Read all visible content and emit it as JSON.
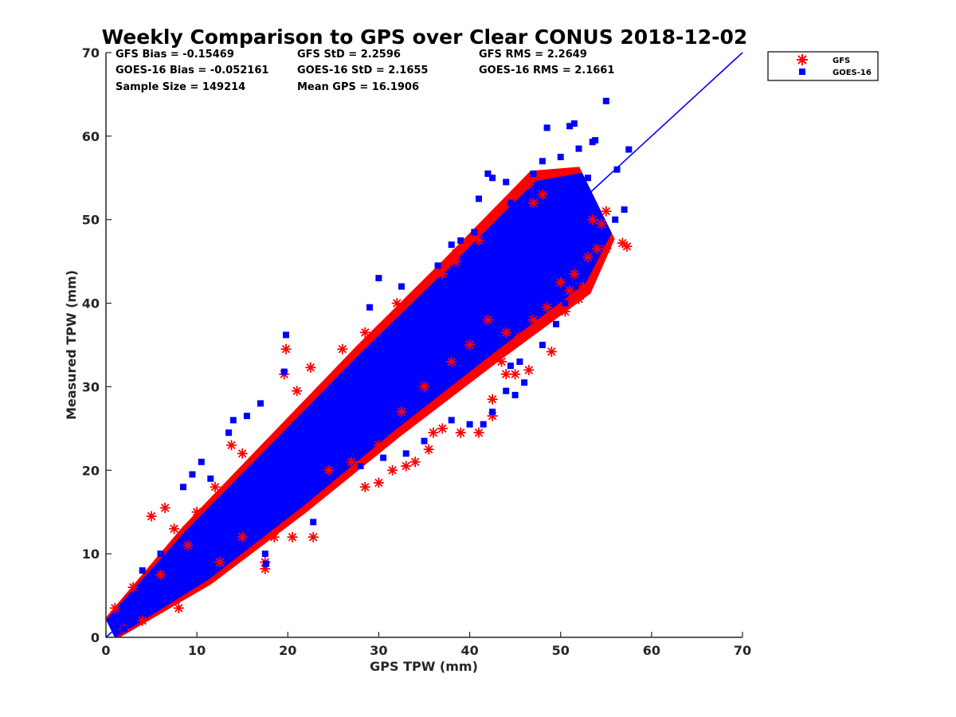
{
  "chart_data": {
    "type": "scatter",
    "title": "Weekly Comparison to GPS over Clear CONUS 2018-12-02",
    "xlabel": "GPS TPW (mm)",
    "ylabel": "Measured TPW (mm)",
    "xlim": [
      0,
      70
    ],
    "ylim": [
      0,
      70
    ],
    "xticks": [
      "0",
      "10",
      "20",
      "30",
      "40",
      "50",
      "60",
      "70"
    ],
    "yticks": [
      "0",
      "10",
      "20",
      "30",
      "40",
      "50",
      "60",
      "70"
    ],
    "grid": false,
    "legend_position": "outside-top-right",
    "stats": {
      "gfs_bias": "GFS Bias = -0.15469",
      "goes_bias": "GOES-16 Bias = -0.052161",
      "sample_size": "Sample Size = 149214",
      "gfs_std": "GFS StD = 2.2596",
      "goes_std": "GOES-16 StD = 2.1655",
      "mean_gps": "Mean GPS = 16.1906",
      "gfs_rms": "GFS RMS = 2.2649",
      "goes_rms": "GOES-16 RMS = 2.1661"
    },
    "series": [
      {
        "name": "GFS",
        "marker": "asterisk",
        "color": "#ff0000",
        "points": [
          [
            19.8,
            34.5
          ],
          [
            19.6,
            31.5
          ],
          [
            22.5,
            32.3
          ],
          [
            13.8,
            23.0
          ],
          [
            17.5,
            8.2
          ],
          [
            17.5,
            9.0
          ],
          [
            22.8,
            12.0
          ],
          [
            20.5,
            12.0
          ],
          [
            18.5,
            12.0
          ],
          [
            21.0,
            29.5
          ],
          [
            5.0,
            14.5
          ],
          [
            6.5,
            15.5
          ],
          [
            3.0,
            6.0
          ],
          [
            8.0,
            3.5
          ],
          [
            41.0,
            24.5
          ],
          [
            39.0,
            24.5
          ],
          [
            42.5,
            26.5
          ],
          [
            42.5,
            28.5
          ],
          [
            44.0,
            31.5
          ],
          [
            45.0,
            31.5
          ],
          [
            46.5,
            32.0
          ],
          [
            49.0,
            34.2
          ],
          [
            36.0,
            24.5
          ],
          [
            37.0,
            25.0
          ],
          [
            35.5,
            22.5
          ],
          [
            34.0,
            21.0
          ],
          [
            33.0,
            20.5
          ],
          [
            31.5,
            20.0
          ],
          [
            30.0,
            18.5
          ],
          [
            28.5,
            18.0
          ],
          [
            37.0,
            43.5
          ],
          [
            38.5,
            46.0
          ],
          [
            38.5,
            45.0
          ],
          [
            37.5,
            44.5
          ],
          [
            41.0,
            47.5
          ],
          [
            47.0,
            52.0
          ],
          [
            48.0,
            53.0
          ],
          [
            45.5,
            53.5
          ],
          [
            46.5,
            54.2
          ],
          [
            50.0,
            42.5
          ],
          [
            51.0,
            41.5
          ],
          [
            52.0,
            40.5
          ],
          [
            51.5,
            43.5
          ],
          [
            52.5,
            42.0
          ],
          [
            53.0,
            45.5
          ],
          [
            54.0,
            46.5
          ],
          [
            55.0,
            46.5
          ],
          [
            54.5,
            49.5
          ],
          [
            55.0,
            51.0
          ],
          [
            56.8,
            47.2
          ],
          [
            57.3,
            46.8
          ],
          [
            53.5,
            50.0
          ],
          [
            50.5,
            39.0
          ],
          [
            48.5,
            39.5
          ],
          [
            47.0,
            38.0
          ],
          [
            45.5,
            36.0
          ],
          [
            43.5,
            33.0
          ],
          [
            44.0,
            36.5
          ],
          [
            26.0,
            34.5
          ],
          [
            28.5,
            36.5
          ],
          [
            32.0,
            40.0
          ],
          [
            15.0,
            22.0
          ],
          [
            12.0,
            18.0
          ],
          [
            10.0,
            15.0
          ],
          [
            9.0,
            11.0
          ],
          [
            6.0,
            7.5
          ],
          [
            4.0,
            2.0
          ],
          [
            2.0,
            1.0
          ],
          [
            1.0,
            3.5
          ],
          [
            7.5,
            13.0
          ],
          [
            12.5,
            9.0
          ],
          [
            15.0,
            12.0
          ],
          [
            24.5,
            20.0
          ],
          [
            27.0,
            21.0
          ],
          [
            30.0,
            23.0
          ],
          [
            32.5,
            27.0
          ],
          [
            35.0,
            30.0
          ],
          [
            38.0,
            33.0
          ],
          [
            40.0,
            35.0
          ],
          [
            42.0,
            38.0
          ]
        ]
      },
      {
        "name": "GOES-16",
        "marker": "square",
        "color": "#0000ff",
        "points": [
          [
            55.0,
            64.2
          ],
          [
            48.5,
            61.0
          ],
          [
            51.0,
            61.2
          ],
          [
            51.5,
            61.5
          ],
          [
            57.5,
            58.4
          ],
          [
            53.5,
            59.3
          ],
          [
            53.8,
            59.5
          ],
          [
            56.2,
            56.0
          ],
          [
            52.0,
            58.5
          ],
          [
            48.0,
            57.0
          ],
          [
            50.0,
            57.5
          ],
          [
            47.0,
            55.5
          ],
          [
            44.0,
            54.5
          ],
          [
            42.5,
            55.0
          ],
          [
            42.0,
            55.5
          ],
          [
            45.0,
            51.0
          ],
          [
            44.5,
            52.0
          ],
          [
            41.0,
            52.5
          ],
          [
            57.0,
            51.2
          ],
          [
            56.0,
            50.0
          ],
          [
            50.0,
            45.0
          ],
          [
            50.5,
            40.0
          ],
          [
            49.5,
            37.5
          ],
          [
            48.0,
            35.0
          ],
          [
            44.5,
            32.5
          ],
          [
            45.5,
            33.0
          ],
          [
            39.0,
            47.5
          ],
          [
            38.0,
            47.0
          ],
          [
            40.5,
            48.5
          ],
          [
            36.5,
            44.5
          ],
          [
            30.0,
            43.0
          ],
          [
            32.5,
            42.0
          ],
          [
            29.0,
            39.5
          ],
          [
            19.8,
            36.2
          ],
          [
            19.6,
            31.8
          ],
          [
            17.0,
            28.0
          ],
          [
            15.5,
            26.5
          ],
          [
            14.0,
            26.0
          ],
          [
            13.5,
            24.5
          ],
          [
            10.5,
            21.0
          ],
          [
            9.5,
            19.5
          ],
          [
            8.5,
            18.0
          ],
          [
            11.5,
            19.0
          ],
          [
            17.5,
            10.0
          ],
          [
            17.6,
            8.8
          ],
          [
            22.8,
            13.8
          ],
          [
            20.0,
            15.0
          ],
          [
            28.0,
            20.5
          ],
          [
            30.5,
            21.5
          ],
          [
            33.0,
            22.0
          ],
          [
            35.0,
            23.5
          ],
          [
            38.0,
            26.0
          ],
          [
            40.0,
            25.5
          ],
          [
            41.5,
            25.5
          ],
          [
            42.5,
            27.0
          ],
          [
            44.0,
            29.5
          ],
          [
            45.0,
            29.0
          ],
          [
            46.0,
            30.5
          ],
          [
            2.0,
            1.0
          ],
          [
            3.0,
            2.5
          ],
          [
            5.0,
            4.0
          ],
          [
            4.0,
            8.0
          ],
          [
            6.0,
            10.0
          ],
          [
            7.0,
            7.0
          ],
          [
            10.0,
            12.0
          ],
          [
            12.0,
            15.0
          ],
          [
            15.0,
            17.0
          ],
          [
            18.0,
            20.0
          ],
          [
            21.0,
            23.0
          ],
          [
            24.0,
            25.0
          ],
          [
            27.0,
            28.0
          ],
          [
            30.0,
            31.0
          ],
          [
            33.0,
            34.0
          ],
          [
            36.0,
            37.0
          ],
          [
            39.0,
            40.0
          ],
          [
            42.0,
            43.0
          ],
          [
            45.0,
            46.0
          ],
          [
            48.0,
            49.0
          ],
          [
            51.0,
            52.0
          ],
          [
            53.0,
            55.0
          ]
        ]
      }
    ],
    "reference_line": {
      "from": [
        0,
        0
      ],
      "to": [
        70,
        70
      ],
      "color": "#0000ff"
    },
    "density_band": {
      "description_free": true,
      "centerline": [
        [
          0.5,
          1.0
        ],
        [
          10,
          9.8
        ],
        [
          20,
          19.5
        ],
        [
          30,
          29.5
        ],
        [
          40,
          39.0
        ],
        [
          50,
          48.5
        ],
        [
          54,
          52.0
        ]
      ],
      "outer_halfwidth": [
        [
          0.5,
          1.2
        ],
        [
          10,
          3.2
        ],
        [
          20,
          4.2
        ],
        [
          30,
          5.0
        ],
        [
          40,
          5.8
        ],
        [
          50,
          6.8
        ],
        [
          54,
          4.0
        ]
      ],
      "red_color": "#ff0000",
      "blue_color": "#0000ff"
    }
  }
}
